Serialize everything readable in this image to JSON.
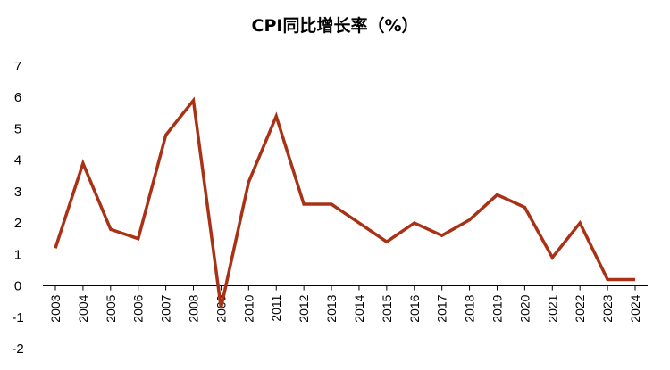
{
  "chart_data": {
    "type": "line",
    "title": "CPI同比增长率（%）",
    "xlabel": "",
    "ylabel": "",
    "categories": [
      "2003",
      "2004",
      "2005",
      "2006",
      "2007",
      "2008",
      "2009",
      "2010",
      "2011",
      "2012",
      "2013",
      "2014",
      "2015",
      "2016",
      "2017",
      "2018",
      "2019",
      "2020",
      "2021",
      "2022",
      "2023",
      "2024"
    ],
    "series": [
      {
        "values": [
          1.2,
          3.9,
          1.8,
          1.5,
          4.8,
          5.9,
          -0.7,
          3.3,
          5.4,
          2.6,
          2.6,
          2.0,
          1.4,
          2.0,
          1.6,
          2.1,
          2.9,
          2.5,
          0.9,
          2.0,
          0.2,
          0.2
        ],
        "color": "#A93216"
      }
    ],
    "ylim": [
      -2,
      7
    ],
    "yticks": [
      7,
      6,
      5,
      4,
      3,
      2,
      1,
      0,
      -1,
      -2
    ],
    "grid": false,
    "legend": "none"
  }
}
